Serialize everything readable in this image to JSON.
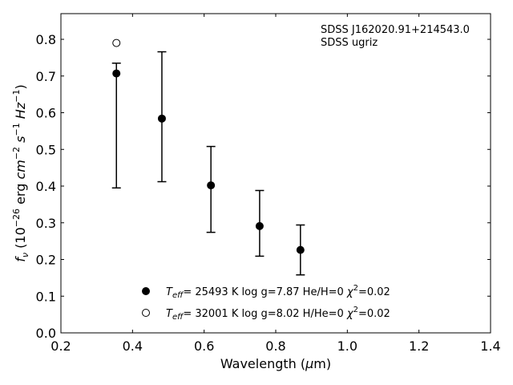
{
  "chart_data": {
    "type": "scatter",
    "xlabel": "Wavelength (μm)",
    "ylabel": "f_ν (10^-26 erg cm^-2 s^-1 Hz^-1)",
    "xlim": [
      0.2,
      1.4
    ],
    "ylim": [
      0.0,
      0.87
    ],
    "x_ticks": [
      0.2,
      0.4,
      0.6,
      0.8,
      1.0,
      1.2,
      1.4
    ],
    "y_ticks": [
      0.0,
      0.1,
      0.2,
      0.3,
      0.4,
      0.5,
      0.6,
      0.7,
      0.8
    ],
    "grid": false,
    "legend_position": "bottom-center",
    "annotations": [
      "SDSS J162020.91+214543.0",
      "SDSS ugriz"
    ],
    "series": [
      {
        "name": "T_eff= 25493 K  log g=7.87  He/H=0  χ²=0.02",
        "marker": "filled-circle",
        "x": [
          0.355,
          0.482,
          0.619,
          0.755,
          0.869
        ],
        "y": [
          0.707,
          0.584,
          0.402,
          0.291,
          0.226
        ]
      },
      {
        "name": "T_eff= 32001 K  log g=8.02  H/He=0  χ²=0.02",
        "marker": "open-circle",
        "x": [
          0.355
        ],
        "y": [
          0.79
        ]
      }
    ],
    "observed": {
      "x": [
        0.355,
        0.482,
        0.619,
        0.755,
        0.869
      ],
      "y_low": [
        0.395,
        0.412,
        0.274,
        0.209,
        0.158
      ],
      "y_high": [
        0.735,
        0.766,
        0.508,
        0.388,
        0.294
      ]
    }
  }
}
